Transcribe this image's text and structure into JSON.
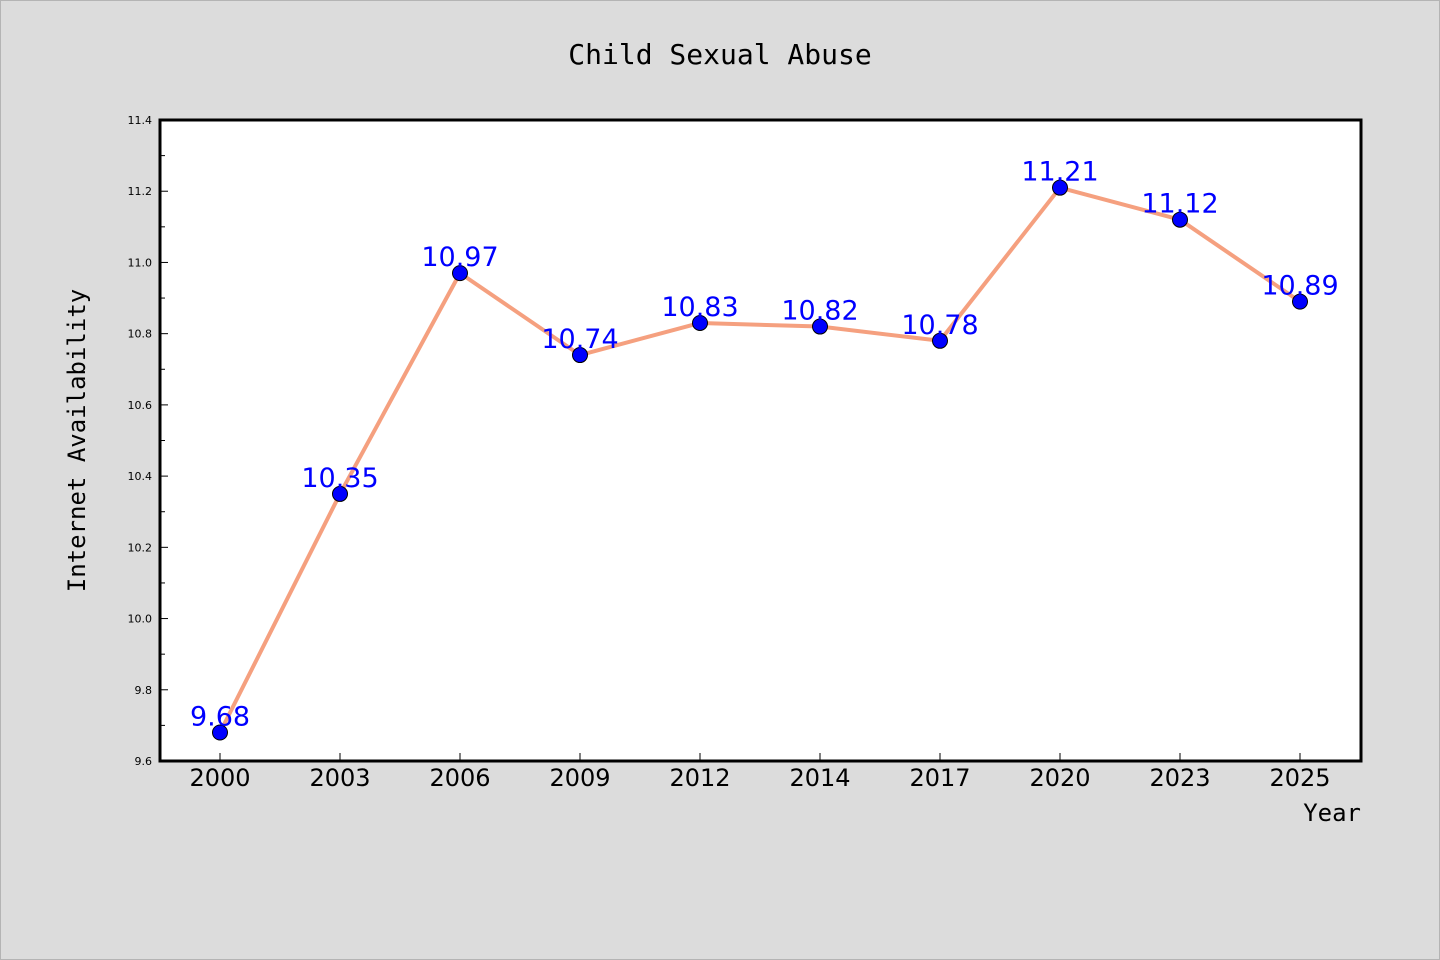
{
  "chart_data": {
    "type": "line",
    "title": "Child Sexual Abuse",
    "xlabel": "Year",
    "ylabel": "Internet Availability",
    "categories": [
      "2000",
      "2003",
      "2006",
      "2009",
      "2012",
      "2014",
      "2017",
      "2020",
      "2023",
      "2025"
    ],
    "series": [
      {
        "values": [
          9.68,
          10.35,
          10.97,
          10.74,
          10.83,
          10.82,
          10.78,
          11.21,
          11.12,
          10.89
        ],
        "labels": [
          "9.68",
          "10.35",
          "10.97",
          "10.74",
          "10.83",
          "10.82",
          "10.78",
          "11.21",
          "11.12",
          "10.89"
        ],
        "line_color": "#f5a07f",
        "marker_color": "#0000ff"
      }
    ],
    "ylim": [
      9.6,
      11.4
    ],
    "yticks": [
      "9.6",
      "9.8",
      "10.0",
      "10.2",
      "10.4",
      "10.6",
      "10.8",
      "11.0",
      "11.2",
      "11.4"
    ],
    "grid": false,
    "legend": "none",
    "colors": {
      "background": "#dcdcdc",
      "plot_background": "#ffffff",
      "label_text": "#0000ff"
    }
  }
}
